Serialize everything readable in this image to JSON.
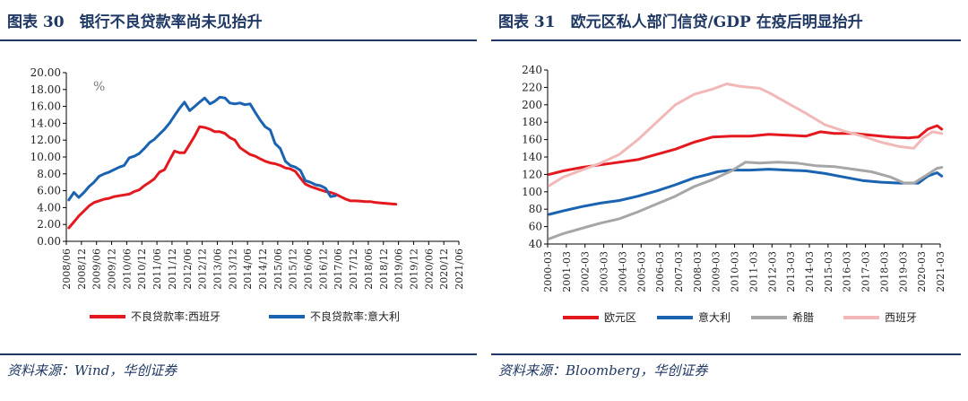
{
  "left": {
    "title": "图表 30　银行不良贷款率尚未见抬升",
    "source": "资料来源：Wind，华创证券",
    "chart_data": {
      "type": "line",
      "unit_label": "%",
      "ylim": [
        0,
        20
      ],
      "yticks": [
        "0.00",
        "2.00",
        "4.00",
        "6.00",
        "8.00",
        "10.00",
        "12.00",
        "14.00",
        "16.00",
        "18.00",
        "20.00"
      ],
      "xticks": [
        "2008/06",
        "2008/12",
        "2009/06",
        "2009/12",
        "2010/06",
        "2010/12",
        "2011/06",
        "2011/12",
        "2012/06",
        "2012/12",
        "2013/06",
        "2013/12",
        "2014/06",
        "2014/12",
        "2015/06",
        "2015/12",
        "2016/06",
        "2016/12",
        "2017/06",
        "2017/12",
        "2018/06",
        "2018/12",
        "2019/06",
        "2019/12",
        "2020/06",
        "2020/12",
        "2021/06"
      ],
      "grid": false,
      "legend_position": "bottom",
      "series": [
        {
          "name": "不良贷款率:西班牙",
          "color": "#e4191f",
          "points": [
            [
              2008.5,
              1.6
            ],
            [
              2008.67,
              2.3
            ],
            [
              2008.83,
              3.0
            ],
            [
              2009.0,
              3.6
            ],
            [
              2009.17,
              4.2
            ],
            [
              2009.33,
              4.6
            ],
            [
              2009.5,
              4.8
            ],
            [
              2009.67,
              5.0
            ],
            [
              2009.83,
              5.1
            ],
            [
              2010.0,
              5.3
            ],
            [
              2010.17,
              5.4
            ],
            [
              2010.33,
              5.5
            ],
            [
              2010.5,
              5.6
            ],
            [
              2010.67,
              5.9
            ],
            [
              2010.83,
              6.1
            ],
            [
              2011.0,
              6.6
            ],
            [
              2011.17,
              7.0
            ],
            [
              2011.33,
              7.4
            ],
            [
              2011.5,
              8.2
            ],
            [
              2011.67,
              8.5
            ],
            [
              2011.83,
              9.6
            ],
            [
              2012.0,
              10.7
            ],
            [
              2012.17,
              10.5
            ],
            [
              2012.33,
              10.5
            ],
            [
              2012.5,
              11.5
            ],
            [
              2012.67,
              12.5
            ],
            [
              2012.83,
              13.6
            ],
            [
              2013.0,
              13.5
            ],
            [
              2013.17,
              13.3
            ],
            [
              2013.33,
              13.0
            ],
            [
              2013.5,
              13.0
            ],
            [
              2013.67,
              12.8
            ],
            [
              2013.83,
              12.3
            ],
            [
              2014.0,
              12.0
            ],
            [
              2014.17,
              11.1
            ],
            [
              2014.33,
              10.7
            ],
            [
              2014.5,
              10.3
            ],
            [
              2014.67,
              10.1
            ],
            [
              2014.83,
              9.8
            ],
            [
              2015.0,
              9.5
            ],
            [
              2015.17,
              9.3
            ],
            [
              2015.33,
              9.2
            ],
            [
              2015.5,
              9.0
            ],
            [
              2015.67,
              8.7
            ],
            [
              2015.83,
              8.6
            ],
            [
              2016.0,
              8.3
            ],
            [
              2016.17,
              7.5
            ],
            [
              2016.33,
              6.8
            ],
            [
              2016.5,
              6.5
            ],
            [
              2016.67,
              6.3
            ],
            [
              2016.83,
              6.1
            ],
            [
              2017.0,
              5.9
            ],
            [
              2017.17,
              5.8
            ],
            [
              2017.33,
              5.6
            ],
            [
              2017.5,
              5.3
            ],
            [
              2017.67,
              5.0
            ],
            [
              2017.83,
              4.8
            ],
            [
              2018.0,
              4.8
            ],
            [
              2018.17,
              4.75
            ],
            [
              2018.33,
              4.7
            ],
            [
              2018.5,
              4.7
            ],
            [
              2018.67,
              4.6
            ],
            [
              2018.83,
              4.55
            ],
            [
              2019.0,
              4.5
            ],
            [
              2019.17,
              4.45
            ],
            [
              2019.33,
              4.4
            ]
          ]
        },
        {
          "name": "不良贷款率:意大利",
          "color": "#1a63b0",
          "points": [
            [
              2008.5,
              4.9
            ],
            [
              2008.67,
              5.8
            ],
            [
              2008.83,
              5.2
            ],
            [
              2009.0,
              5.8
            ],
            [
              2009.17,
              6.5
            ],
            [
              2009.33,
              7.0
            ],
            [
              2009.5,
              7.7
            ],
            [
              2009.67,
              8.0
            ],
            [
              2009.83,
              8.2
            ],
            [
              2010.0,
              8.5
            ],
            [
              2010.17,
              8.8
            ],
            [
              2010.33,
              9.0
            ],
            [
              2010.5,
              9.9
            ],
            [
              2010.67,
              10.1
            ],
            [
              2010.83,
              10.4
            ],
            [
              2011.0,
              11.0
            ],
            [
              2011.17,
              11.7
            ],
            [
              2011.33,
              12.1
            ],
            [
              2011.5,
              12.7
            ],
            [
              2011.67,
              13.3
            ],
            [
              2011.83,
              14.0
            ],
            [
              2012.0,
              14.9
            ],
            [
              2012.17,
              15.8
            ],
            [
              2012.33,
              16.5
            ],
            [
              2012.5,
              15.5
            ],
            [
              2012.67,
              16.0
            ],
            [
              2012.83,
              16.5
            ],
            [
              2013.0,
              17.0
            ],
            [
              2013.17,
              16.3
            ],
            [
              2013.33,
              16.6
            ],
            [
              2013.5,
              17.1
            ],
            [
              2013.67,
              17.0
            ],
            [
              2013.83,
              16.4
            ],
            [
              2014.0,
              16.3
            ],
            [
              2014.17,
              16.4
            ],
            [
              2014.33,
              16.2
            ],
            [
              2014.5,
              16.3
            ],
            [
              2014.67,
              15.3
            ],
            [
              2014.83,
              14.4
            ],
            [
              2015.0,
              13.6
            ],
            [
              2015.17,
              13.2
            ],
            [
              2015.33,
              11.6
            ],
            [
              2015.5,
              11.0
            ],
            [
              2015.67,
              9.5
            ],
            [
              2015.83,
              9.0
            ],
            [
              2016.0,
              8.8
            ],
            [
              2016.17,
              8.4
            ],
            [
              2016.33,
              7.2
            ],
            [
              2016.5,
              7.0
            ],
            [
              2016.67,
              6.7
            ],
            [
              2016.83,
              6.6
            ],
            [
              2017.0,
              6.3
            ],
            [
              2017.17,
              5.3
            ],
            [
              2017.33,
              5.4
            ]
          ]
        }
      ]
    }
  },
  "right": {
    "title": "图表 31　欧元区私人部门信贷/GDP 在疫后明显抬升",
    "source": "资料来源：Bloomberg，华创证券",
    "chart_data": {
      "type": "line",
      "ylim": [
        40,
        240
      ],
      "yticks": [
        "40",
        "60",
        "80",
        "100",
        "120",
        "140",
        "160",
        "180",
        "200",
        "220",
        "240"
      ],
      "xticks": [
        "2000-03",
        "2001-03",
        "2002-03",
        "2003-03",
        "2004-03",
        "2005-03",
        "2006-03",
        "2007-03",
        "2008-03",
        "2009-03",
        "2010-03",
        "2011-03",
        "2012-03",
        "2013-03",
        "2014-03",
        "2015-03",
        "2016-03",
        "2017-03",
        "2018-03",
        "2019-03",
        "2020-03",
        "2021-03"
      ],
      "grid": false,
      "legend_position": "bottom",
      "series": [
        {
          "name": "欧元区",
          "color": "#e4191f",
          "points": [
            [
              2000.25,
              120
            ],
            [
              2001.0,
              124
            ],
            [
              2002.0,
              128
            ],
            [
              2003.0,
              131
            ],
            [
              2004.0,
              134
            ],
            [
              2005.0,
              137
            ],
            [
              2006.0,
              143
            ],
            [
              2007.0,
              149
            ],
            [
              2008.0,
              157
            ],
            [
              2009.0,
              163
            ],
            [
              2010.0,
              164
            ],
            [
              2011.0,
              164
            ],
            [
              2012.0,
              166
            ],
            [
              2013.0,
              165
            ],
            [
              2014.0,
              164
            ],
            [
              2014.75,
              169
            ],
            [
              2015.5,
              167
            ],
            [
              2016.5,
              167
            ],
            [
              2017.5,
              165
            ],
            [
              2018.5,
              163
            ],
            [
              2019.5,
              162
            ],
            [
              2020.0,
              163
            ],
            [
              2020.5,
              172
            ],
            [
              2021.0,
              176
            ],
            [
              2021.25,
              172
            ]
          ]
        },
        {
          "name": "意大利",
          "color": "#1a63b0",
          "points": [
            [
              2000.25,
              74
            ],
            [
              2001.0,
              78
            ],
            [
              2002.0,
              83
            ],
            [
              2003.0,
              87
            ],
            [
              2004.0,
              90
            ],
            [
              2005.0,
              95
            ],
            [
              2006.0,
              101
            ],
            [
              2007.0,
              108
            ],
            [
              2008.0,
              116
            ],
            [
              2008.75,
              120
            ],
            [
              2009.25,
              123
            ],
            [
              2010.0,
              125
            ],
            [
              2011.0,
              125
            ],
            [
              2012.0,
              126
            ],
            [
              2013.0,
              125
            ],
            [
              2014.0,
              124
            ],
            [
              2015.0,
              121
            ],
            [
              2016.0,
              117
            ],
            [
              2017.0,
              113
            ],
            [
              2018.0,
              111
            ],
            [
              2019.0,
              110
            ],
            [
              2020.0,
              110
            ],
            [
              2020.5,
              118
            ],
            [
              2021.0,
              122
            ],
            [
              2021.25,
              118
            ]
          ]
        },
        {
          "name": "希腊",
          "color": "#a6a6a6",
          "points": [
            [
              2000.25,
              46
            ],
            [
              2001.0,
              52
            ],
            [
              2002.0,
              58
            ],
            [
              2003.0,
              64
            ],
            [
              2004.0,
              69
            ],
            [
              2005.0,
              77
            ],
            [
              2006.0,
              86
            ],
            [
              2007.0,
              95
            ],
            [
              2008.0,
              106
            ],
            [
              2009.0,
              114
            ],
            [
              2010.0,
              124
            ],
            [
              2010.75,
              134
            ],
            [
              2011.5,
              133
            ],
            [
              2012.5,
              134
            ],
            [
              2013.5,
              133
            ],
            [
              2014.5,
              130
            ],
            [
              2015.5,
              129
            ],
            [
              2016.5,
              126
            ],
            [
              2017.5,
              123
            ],
            [
              2018.5,
              117
            ],
            [
              2019.25,
              110
            ],
            [
              2019.75,
              110
            ],
            [
              2020.5,
              120
            ],
            [
              2021.0,
              127
            ],
            [
              2021.25,
              128
            ]
          ]
        },
        {
          "name": "西班牙",
          "color": "#f2b8b8",
          "points": [
            [
              2000.25,
              107
            ],
            [
              2001.0,
              117
            ],
            [
              2002.0,
              125
            ],
            [
              2003.0,
              133
            ],
            [
              2004.0,
              143
            ],
            [
              2005.0,
              160
            ],
            [
              2006.0,
              180
            ],
            [
              2007.0,
              200
            ],
            [
              2008.0,
              212
            ],
            [
              2009.0,
              218
            ],
            [
              2009.75,
              224
            ],
            [
              2010.5,
              221
            ],
            [
              2011.5,
              219
            ],
            [
              2012.0,
              214
            ],
            [
              2013.0,
              202
            ],
            [
              2014.0,
              190
            ],
            [
              2015.0,
              177
            ],
            [
              2016.0,
              170
            ],
            [
              2017.0,
              164
            ],
            [
              2018.0,
              157
            ],
            [
              2019.0,
              152
            ],
            [
              2019.75,
              150
            ],
            [
              2020.25,
              162
            ],
            [
              2020.75,
              169
            ],
            [
              2021.25,
              167
            ]
          ]
        }
      ]
    }
  }
}
